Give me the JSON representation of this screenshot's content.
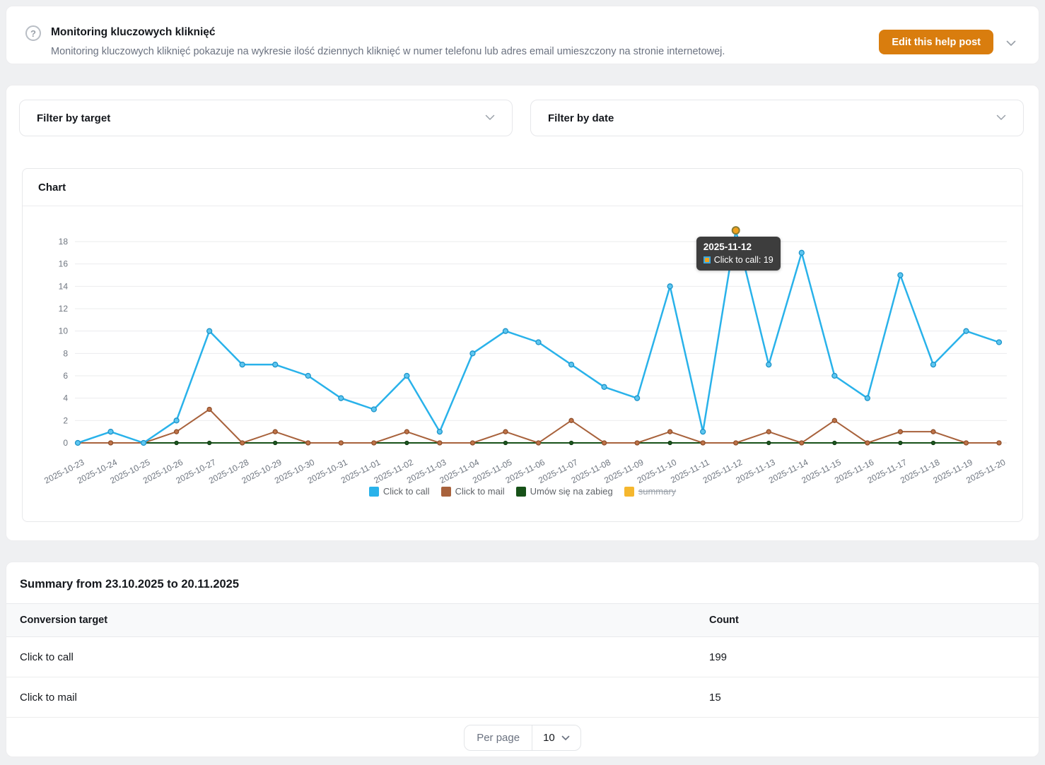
{
  "help_post": {
    "title": "Monitoring kluczowych kliknięć",
    "description": "Monitoring kluczowych kliknięć pokazuje na wykresie ilość dziennych kliknięć w numer telefonu lub adres email umieszczony na stronie internetowej.",
    "edit_button_label": "Edit this help post",
    "accent_color": "#d97d0e"
  },
  "filters": {
    "target_label": "Filter by target",
    "date_label": "Filter by date"
  },
  "chart_card": {
    "title": "Chart"
  },
  "chart_data": {
    "type": "line",
    "x": [
      "2025-10-23",
      "2025-10-24",
      "2025-10-25",
      "2025-10-26",
      "2025-10-27",
      "2025-10-28",
      "2025-10-29",
      "2025-10-30",
      "2025-10-31",
      "2025-11-01",
      "2025-11-02",
      "2025-11-03",
      "2025-11-04",
      "2025-11-05",
      "2025-11-06",
      "2025-11-07",
      "2025-11-08",
      "2025-11-09",
      "2025-11-10",
      "2025-11-11",
      "2025-11-12",
      "2025-11-13",
      "2025-11-14",
      "2025-11-15",
      "2025-11-16",
      "2025-11-17",
      "2025-11-18",
      "2025-11-19",
      "2025-11-20"
    ],
    "series": [
      {
        "name": "Click to call",
        "color": "#29b2ea",
        "marker_fill": "#5ec6f0",
        "marker_stroke": "#1d94c9",
        "width": 2.5,
        "marker_r": 3.5,
        "visible": true,
        "disabled": false,
        "values": [
          0,
          1,
          0,
          2,
          10,
          7,
          7,
          6,
          4,
          3,
          6,
          1,
          8,
          10,
          9,
          7,
          5,
          4,
          14,
          1,
          19,
          7,
          17,
          6,
          4,
          15,
          7,
          10,
          9
        ]
      },
      {
        "name": "Click to mail",
        "color": "#a8623c",
        "marker_fill": "#bf7349",
        "marker_stroke": "#8f4f2a",
        "width": 2,
        "marker_r": 3,
        "visible": true,
        "disabled": false,
        "values": [
          0,
          0,
          0,
          1,
          3,
          0,
          1,
          0,
          0,
          0,
          1,
          0,
          0,
          1,
          0,
          2,
          0,
          0,
          1,
          0,
          0,
          1,
          0,
          2,
          0,
          1,
          1,
          0,
          0
        ]
      },
      {
        "name": "Umów się na zabieg",
        "color": "#175118",
        "marker_fill": "#1d5a20",
        "marker_stroke": "#123c14",
        "width": 2,
        "marker_r": 2.5,
        "visible": true,
        "disabled": false,
        "values": [
          0,
          0,
          0,
          0,
          0,
          0,
          0,
          0,
          0,
          0,
          0,
          0,
          0,
          0,
          0,
          0,
          0,
          0,
          0,
          0,
          0,
          0,
          0,
          0,
          0,
          0,
          0,
          0,
          0
        ]
      },
      {
        "name": "summary",
        "color": "#f5b72e",
        "visible": false,
        "disabled": true,
        "values": []
      }
    ],
    "ylim": [
      0,
      18
    ],
    "ytick_step": 2,
    "grid": true,
    "legend_position": "bottom",
    "xlabel": "",
    "ylabel": "",
    "tooltip": {
      "date": "2025-11-12",
      "series": "Click to call",
      "value": 19,
      "label": "Click to call: 19"
    }
  },
  "summary": {
    "title": "Summary from 23.10.2025 to 20.11.2025",
    "columns": [
      "Conversion target",
      "Count"
    ],
    "rows": [
      {
        "target": "Click to call",
        "count": "199"
      },
      {
        "target": "Click to mail",
        "count": "15"
      }
    ],
    "per_page_label": "Per page",
    "per_page_value": "10"
  }
}
